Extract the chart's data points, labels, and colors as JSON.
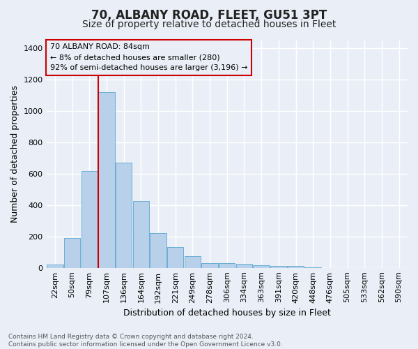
{
  "title": "70, ALBANY ROAD, FLEET, GU51 3PT",
  "subtitle": "Size of property relative to detached houses in Fleet",
  "xlabel": "Distribution of detached houses by size in Fleet",
  "ylabel": "Number of detached properties",
  "footnote1": "Contains HM Land Registry data © Crown copyright and database right 2024.",
  "footnote2": "Contains public sector information licensed under the Open Government Licence v3.0.",
  "bin_labels": [
    "22sqm",
    "50sqm",
    "79sqm",
    "107sqm",
    "136sqm",
    "164sqm",
    "192sqm",
    "221sqm",
    "249sqm",
    "278sqm",
    "306sqm",
    "334sqm",
    "363sqm",
    "391sqm",
    "420sqm",
    "448sqm",
    "476sqm",
    "505sqm",
    "533sqm",
    "562sqm",
    "590sqm"
  ],
  "bar_heights": [
    20,
    190,
    615,
    1120,
    670,
    425,
    220,
    130,
    75,
    30,
    28,
    25,
    15,
    10,
    10,
    5,
    0,
    0,
    0,
    0,
    0
  ],
  "bar_color": "#b8d0ea",
  "bar_edge_color": "#6aaed6",
  "annotation_line1": "70 ALBANY ROAD: 84sqm",
  "annotation_line2": "← 8% of detached houses are smaller (280)",
  "annotation_line3": "92% of semi-detached houses are larger (3,196) →",
  "vline_index": 2.5,
  "vline_color": "#cc0000",
  "ylim": [
    0,
    1450
  ],
  "yticks": [
    0,
    200,
    400,
    600,
    800,
    1000,
    1200,
    1400
  ],
  "bg_color": "#eaeff7",
  "grid_color": "#ffffff",
  "title_fontsize": 12,
  "subtitle_fontsize": 10,
  "axis_label_fontsize": 9,
  "tick_fontsize": 8,
  "footnote_fontsize": 6.5
}
